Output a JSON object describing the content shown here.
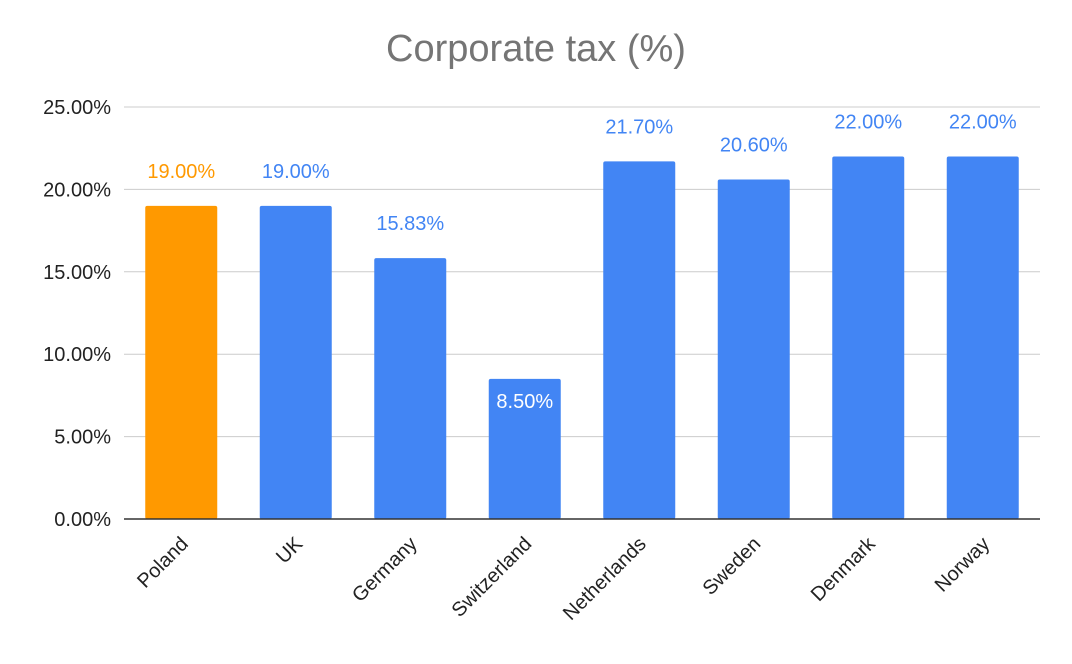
{
  "chart_data": {
    "type": "bar",
    "title": "Corporate tax (%)",
    "xlabel": "",
    "ylabel": "",
    "categories": [
      "Poland",
      "UK",
      "Germany",
      "Switzerland",
      "Netherlands",
      "Sweden",
      "Denmark",
      "Norway"
    ],
    "values": [
      19.0,
      19.0,
      15.83,
      8.5,
      21.7,
      20.6,
      22.0,
      22.0
    ],
    "value_labels": [
      "19.00%",
      "19.00%",
      "15.83%",
      "8.50%",
      "21.70%",
      "20.60%",
      "22.00%",
      "22.00%"
    ],
    "ylim": [
      0,
      25
    ],
    "yticks": [
      0,
      5,
      10,
      15,
      20,
      25
    ],
    "ytick_labels": [
      "0.00%",
      "5.00%",
      "10.00%",
      "15.00%",
      "20.00%",
      "25.00%"
    ],
    "grid": true,
    "legend": "none",
    "colors": {
      "default_bar": "#4285f4",
      "highlight_bar": "#ff9900",
      "highlight_category": "Poland",
      "gridline": "#cccccc",
      "axis": "#333333",
      "inside_label": "#ffffff"
    }
  }
}
